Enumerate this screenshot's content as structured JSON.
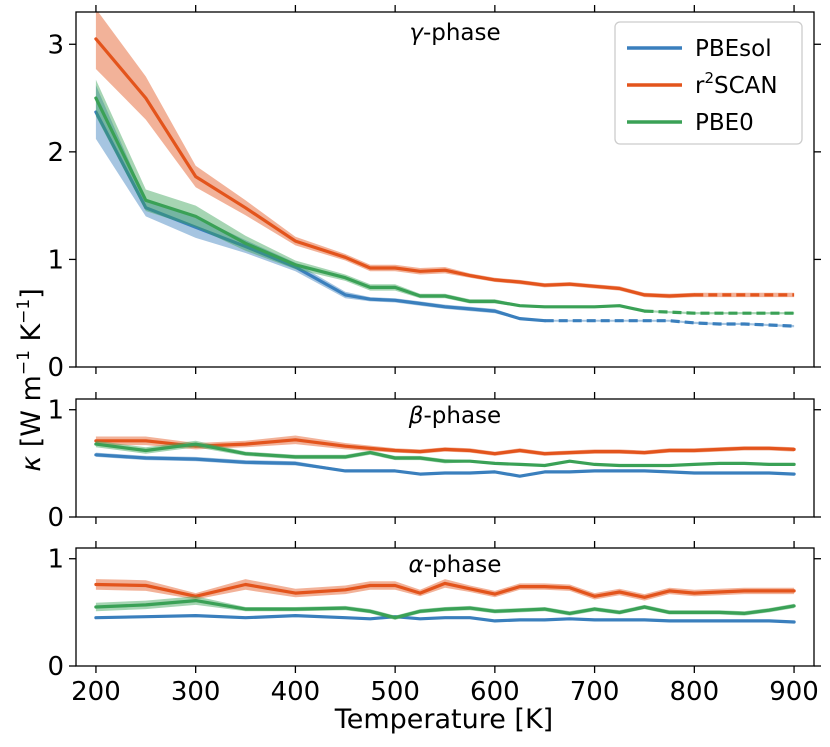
{
  "chart_data": {
    "type": "line",
    "ylabel": "κ [W m⁻¹ K⁻¹]",
    "xlabel": "Temperature [K]",
    "xlim": [
      180,
      920
    ],
    "xticks": [
      200,
      300,
      400,
      500,
      600,
      700,
      800,
      900
    ],
    "legend": {
      "placement": "top-right",
      "entries": [
        {
          "name": "PBEsol",
          "label_main": "PBEsol",
          "label_sup": "",
          "label_rest": ""
        },
        {
          "name": "r2SCAN",
          "label_main": "r",
          "label_sup": "2",
          "label_rest": "SCAN"
        },
        {
          "name": "PBE0",
          "label_main": "PBE0",
          "label_sup": "",
          "label_rest": ""
        }
      ]
    },
    "colors": {
      "PBEsol": "#3a7fbd",
      "r2SCAN": "#e3541c",
      "PBE0": "#3aa156"
    },
    "panels": [
      {
        "title_symbol": "γ",
        "title_rest": "-phase",
        "ylim": [
          0,
          3.3
        ],
        "yticks": [
          0,
          1,
          2,
          3
        ],
        "series": [
          {
            "name": "PBEsol",
            "x": [
              200,
              250,
              300,
              350,
              400,
              450,
              475,
              500,
              525,
              550,
              575,
              600,
              625,
              650,
              675,
              700,
              725,
              750,
              775,
              800,
              825,
              850,
              875,
              900
            ],
            "values": [
              2.37,
              1.48,
              1.3,
              1.12,
              0.93,
              0.67,
              0.63,
              0.62,
              0.59,
              0.56,
              0.54,
              0.52,
              0.45,
              0.43,
              0.43,
              0.43,
              0.43,
              0.43,
              0.43,
              0.41,
              0.4,
              0.4,
              0.39,
              0.38
            ],
            "band": [
              0.25,
              0.08,
              0.1,
              0.06,
              0.04,
              0.03,
              0.02,
              0.02,
              0.02,
              0.02,
              0.02,
              0.02,
              0.01,
              0.01,
              0.01,
              0.01,
              0.01,
              0.01,
              0.01,
              0.01,
              0.01,
              0.01,
              0.01,
              0.01
            ],
            "dashed_from": 650
          },
          {
            "name": "r2SCAN",
            "x": [
              200,
              250,
              300,
              350,
              400,
              450,
              475,
              500,
              525,
              550,
              575,
              600,
              625,
              650,
              675,
              700,
              725,
              750,
              775,
              800,
              825,
              850,
              875,
              900
            ],
            "values": [
              3.05,
              2.5,
              1.77,
              1.48,
              1.17,
              1.02,
              0.92,
              0.92,
              0.89,
              0.9,
              0.85,
              0.81,
              0.79,
              0.76,
              0.77,
              0.75,
              0.73,
              0.67,
              0.66,
              0.67,
              0.67,
              0.67,
              0.67,
              0.67
            ],
            "band": [
              0.28,
              0.2,
              0.1,
              0.07,
              0.04,
              0.03,
              0.03,
              0.03,
              0.03,
              0.03,
              0.02,
              0.02,
              0.02,
              0.02,
              0.02,
              0.02,
              0.02,
              0.02,
              0.02,
              0.02,
              0.02,
              0.02,
              0.02,
              0.02
            ],
            "dashed_from": 800
          },
          {
            "name": "PBE0",
            "x": [
              200,
              250,
              300,
              350,
              400,
              450,
              475,
              500,
              525,
              550,
              575,
              600,
              625,
              650,
              675,
              700,
              725,
              750,
              775,
              800,
              825,
              850,
              875,
              900
            ],
            "values": [
              2.5,
              1.55,
              1.4,
              1.15,
              0.95,
              0.83,
              0.74,
              0.74,
              0.66,
              0.66,
              0.61,
              0.61,
              0.57,
              0.56,
              0.56,
              0.56,
              0.57,
              0.52,
              0.51,
              0.5,
              0.5,
              0.5,
              0.5,
              0.5
            ],
            "band": [
              0.17,
              0.1,
              0.1,
              0.07,
              0.04,
              0.03,
              0.03,
              0.03,
              0.02,
              0.02,
              0.02,
              0.02,
              0.01,
              0.01,
              0.01,
              0.01,
              0.01,
              0.01,
              0.01,
              0.01,
              0.01,
              0.01,
              0.01,
              0.01
            ],
            "dashed_from": 750
          }
        ]
      },
      {
        "title_symbol": "β",
        "title_rest": "-phase",
        "ylim": [
          0,
          1.1
        ],
        "yticks": [
          0,
          1
        ],
        "series": [
          {
            "name": "PBEsol",
            "x": [
              200,
              250,
              300,
              350,
              400,
              450,
              500,
              525,
              550,
              575,
              600,
              625,
              650,
              675,
              700,
              725,
              750,
              775,
              800,
              825,
              850,
              875,
              900
            ],
            "values": [
              0.58,
              0.55,
              0.54,
              0.51,
              0.5,
              0.43,
              0.43,
              0.4,
              0.41,
              0.41,
              0.42,
              0.38,
              0.42,
              0.42,
              0.43,
              0.43,
              0.43,
              0.42,
              0.41,
              0.41,
              0.41,
              0.41,
              0.4
            ],
            "band": [
              0.02,
              0.02,
              0.02,
              0.02,
              0.02,
              0.01,
              0.01,
              0.01,
              0.01,
              0.01,
              0.01,
              0.01,
              0.01,
              0.01,
              0.01,
              0.01,
              0.01,
              0.01,
              0.01,
              0.01,
              0.01,
              0.01,
              0.01
            ]
          },
          {
            "name": "r2SCAN",
            "x": [
              200,
              250,
              300,
              350,
              400,
              450,
              500,
              525,
              550,
              575,
              600,
              625,
              650,
              675,
              700,
              725,
              750,
              775,
              800,
              825,
              850,
              875,
              900
            ],
            "values": [
              0.71,
              0.71,
              0.66,
              0.68,
              0.72,
              0.66,
              0.62,
              0.61,
              0.63,
              0.62,
              0.59,
              0.62,
              0.59,
              0.6,
              0.61,
              0.61,
              0.6,
              0.62,
              0.62,
              0.63,
              0.64,
              0.64,
              0.63
            ],
            "band": [
              0.04,
              0.04,
              0.03,
              0.03,
              0.04,
              0.03,
              0.02,
              0.02,
              0.02,
              0.02,
              0.02,
              0.02,
              0.02,
              0.02,
              0.02,
              0.02,
              0.02,
              0.02,
              0.02,
              0.02,
              0.02,
              0.02,
              0.02
            ]
          },
          {
            "name": "PBE0",
            "x": [
              200,
              250,
              300,
              350,
              400,
              450,
              475,
              500,
              525,
              550,
              575,
              600,
              625,
              650,
              675,
              700,
              725,
              750,
              775,
              800,
              825,
              850,
              875,
              900
            ],
            "values": [
              0.68,
              0.62,
              0.68,
              0.59,
              0.56,
              0.56,
              0.6,
              0.55,
              0.55,
              0.52,
              0.52,
              0.5,
              0.49,
              0.48,
              0.52,
              0.49,
              0.48,
              0.48,
              0.48,
              0.49,
              0.5,
              0.5,
              0.49,
              0.49
            ],
            "band": [
              0.03,
              0.03,
              0.03,
              0.02,
              0.02,
              0.02,
              0.02,
              0.02,
              0.02,
              0.02,
              0.01,
              0.01,
              0.01,
              0.01,
              0.01,
              0.01,
              0.01,
              0.01,
              0.01,
              0.01,
              0.01,
              0.01,
              0.01,
              0.01
            ]
          }
        ]
      },
      {
        "title_symbol": "α",
        "title_rest": "-phase",
        "ylim": [
          0,
          1.1
        ],
        "yticks": [
          0,
          1
        ],
        "series": [
          {
            "name": "PBEsol",
            "x": [
              200,
              250,
              300,
              350,
              400,
              450,
              475,
              500,
              525,
              550,
              575,
              600,
              625,
              650,
              675,
              700,
              725,
              750,
              775,
              800,
              825,
              850,
              875,
              900
            ],
            "values": [
              0.45,
              0.46,
              0.47,
              0.45,
              0.47,
              0.45,
              0.44,
              0.46,
              0.44,
              0.45,
              0.45,
              0.42,
              0.43,
              0.43,
              0.44,
              0.43,
              0.43,
              0.43,
              0.42,
              0.42,
              0.42,
              0.42,
              0.42,
              0.41
            ],
            "band": [
              0.01,
              0.01,
              0.01,
              0.01,
              0.01,
              0.01,
              0.01,
              0.01,
              0.01,
              0.01,
              0.01,
              0.01,
              0.01,
              0.01,
              0.01,
              0.01,
              0.01,
              0.01,
              0.01,
              0.01,
              0.01,
              0.01,
              0.01,
              0.01
            ]
          },
          {
            "name": "r2SCAN",
            "x": [
              200,
              250,
              300,
              350,
              400,
              450,
              475,
              500,
              525,
              550,
              575,
              600,
              625,
              650,
              675,
              700,
              725,
              750,
              775,
              800,
              825,
              850,
              875,
              900
            ],
            "values": [
              0.76,
              0.75,
              0.65,
              0.76,
              0.68,
              0.71,
              0.75,
              0.75,
              0.68,
              0.77,
              0.72,
              0.67,
              0.74,
              0.74,
              0.73,
              0.65,
              0.69,
              0.64,
              0.7,
              0.68,
              0.69,
              0.7,
              0.7,
              0.7
            ],
            "band": [
              0.05,
              0.05,
              0.03,
              0.05,
              0.04,
              0.04,
              0.04,
              0.04,
              0.03,
              0.04,
              0.03,
              0.03,
              0.03,
              0.03,
              0.03,
              0.03,
              0.03,
              0.03,
              0.03,
              0.03,
              0.03,
              0.03,
              0.03,
              0.03
            ]
          },
          {
            "name": "PBE0",
            "x": [
              200,
              250,
              300,
              350,
              400,
              450,
              475,
              500,
              525,
              550,
              575,
              600,
              625,
              650,
              675,
              700,
              725,
              750,
              775,
              800,
              825,
              850,
              875,
              900
            ],
            "values": [
              0.55,
              0.57,
              0.61,
              0.53,
              0.53,
              0.54,
              0.51,
              0.45,
              0.51,
              0.53,
              0.54,
              0.51,
              0.52,
              0.53,
              0.49,
              0.53,
              0.5,
              0.55,
              0.5,
              0.5,
              0.5,
              0.49,
              0.52,
              0.56
            ],
            "band": [
              0.04,
              0.04,
              0.04,
              0.02,
              0.02,
              0.02,
              0.02,
              0.02,
              0.02,
              0.02,
              0.02,
              0.02,
              0.02,
              0.02,
              0.02,
              0.02,
              0.02,
              0.02,
              0.02,
              0.02,
              0.02,
              0.02,
              0.02,
              0.02
            ]
          }
        ]
      }
    ]
  }
}
